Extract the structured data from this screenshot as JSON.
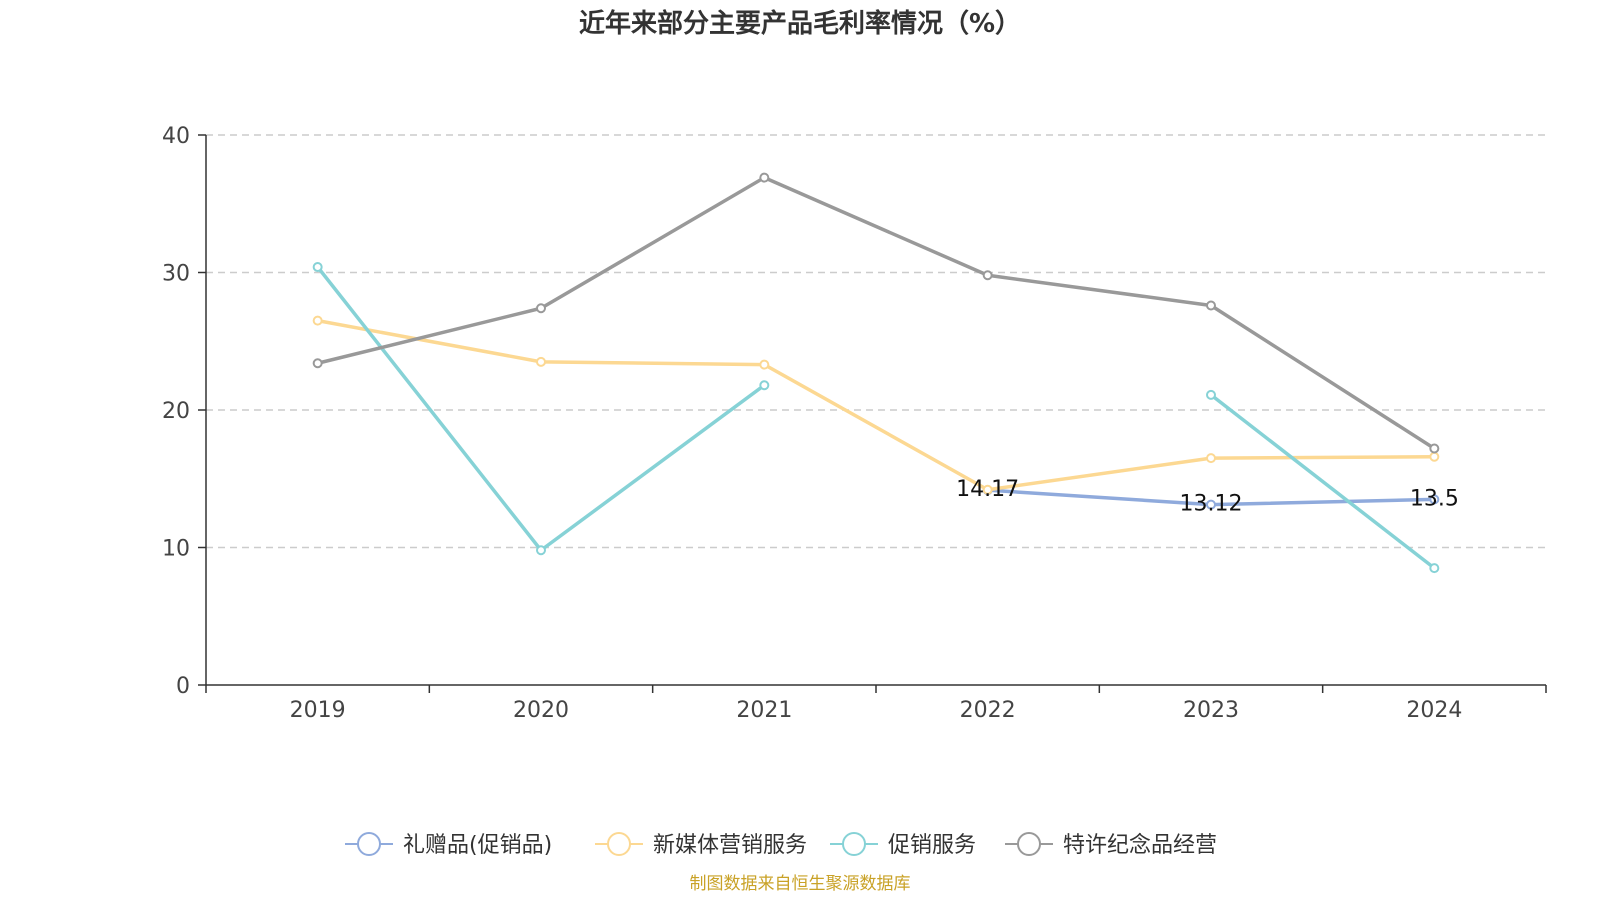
{
  "chart_data": {
    "type": "line",
    "title": "近年来部分主要产品毛利率情况（%）",
    "categories": [
      "2019",
      "2020",
      "2021",
      "2022",
      "2023",
      "2024"
    ],
    "ylim": [
      0,
      40
    ],
    "yticks": [
      0,
      10,
      20,
      30,
      40
    ],
    "grid": true,
    "legend_position": "bottom",
    "series": [
      {
        "name": "礼赠品(促销品)",
        "color": "#8faadc",
        "values": [
          null,
          null,
          null,
          14.17,
          13.12,
          13.5
        ],
        "labels": [
          "",
          "",
          "",
          "14.17",
          "13.12",
          "13.5"
        ]
      },
      {
        "name": "新媒体营销服务",
        "color": "#fcd892",
        "values": [
          26.5,
          23.5,
          23.3,
          14.2,
          16.5,
          16.6
        ],
        "labels": [
          "",
          "",
          "",
          "",
          "",
          ""
        ]
      },
      {
        "name": "促销服务",
        "color": "#86d2d6",
        "values": [
          30.4,
          9.8,
          21.8,
          null,
          21.1,
          8.5
        ],
        "labels": [
          "",
          "",
          "",
          "",
          "",
          ""
        ]
      },
      {
        "name": "特许纪念品经营",
        "color": "#999999",
        "values": [
          23.4,
          27.4,
          36.9,
          29.8,
          27.6,
          17.2
        ],
        "labels": [
          "",
          "",
          "",
          "",
          "",
          ""
        ]
      }
    ]
  },
  "source": {
    "text": "制图数据来自恒生聚源数据库",
    "color": "#c9a227"
  }
}
